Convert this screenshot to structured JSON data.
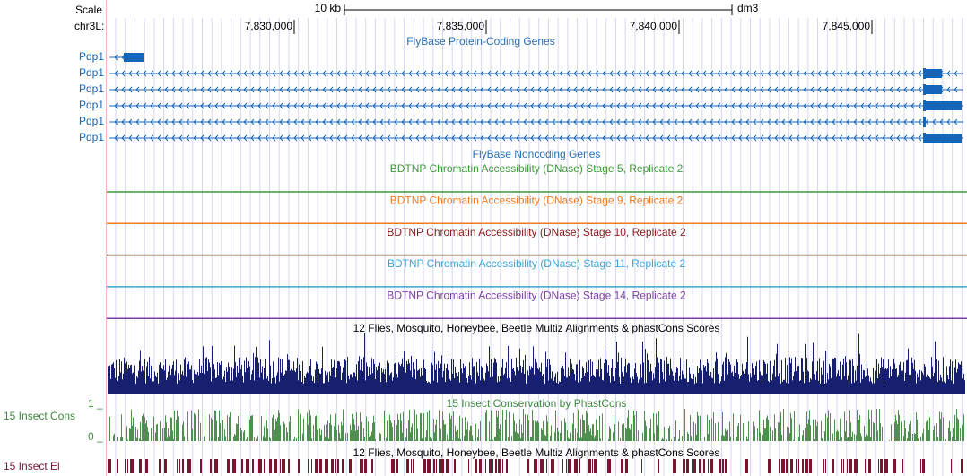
{
  "ruler": {
    "scale_label": "Scale",
    "scale_bar": "10 kb",
    "assembly": "dm3",
    "chrom": "chr3L:",
    "positions": [
      "7,830,000",
      "7,835,000",
      "7,840,000",
      "7,845,000"
    ]
  },
  "genes": {
    "title": "FlyBase Protein-Coding Genes",
    "labels": [
      "Pdp1",
      "Pdp1",
      "Pdp1",
      "Pdp1",
      "Pdp1",
      "Pdp1"
    ]
  },
  "noncoding": {
    "title": "FlyBase Noncoding Genes"
  },
  "dnase": [
    "BDTNP Chromatin Accessibility (DNase) Stage 5, Replicate 2",
    "BDTNP Chromatin Accessibility (DNase) Stage 9, Replicate 2",
    "BDTNP Chromatin Accessibility (DNase) Stage 10, Replicate 2",
    "BDTNP Chromatin Accessibility (DNase) Stage 11, Replicate 2",
    "BDTNP Chromatin Accessibility (DNase) Stage 14, Replicate 2"
  ],
  "multiz": {
    "title": "12 Flies, Mosquito, Honeybee, Beetle Multiz Alignments & phastCons Scores"
  },
  "phastcons": {
    "title": "15 Insect Conservation by PhastCons",
    "label": "15 Insect Cons",
    "top": "1 _",
    "bottom": "0 _"
  },
  "elements": {
    "title": "12 Flies, Mosquito, Honeybee, Beetle Multiz Alignments & phastCons Scores",
    "label": "15 Insect El"
  }
}
